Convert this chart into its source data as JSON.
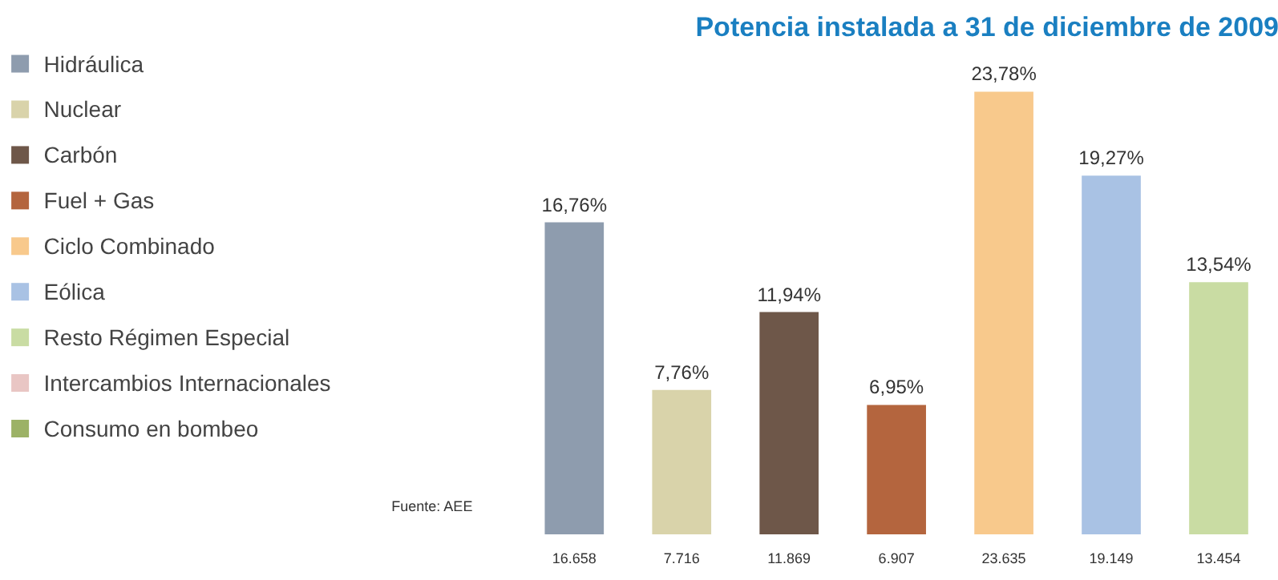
{
  "chart_data": {
    "type": "bar",
    "title": "Potencia instalada a 31 de diciembre de 2009",
    "stacked": true,
    "categories": [
      null,
      null,
      null,
      null,
      null,
      null,
      null
    ],
    "series": [
      {
        "name": "Hidráulica",
        "color": "#8e9cae",
        "values": [
          16.76,
          null,
          null,
          null,
          null,
          null,
          null
        ],
        "value_labels": [
          "16,76%",
          null,
          null,
          null,
          null,
          null,
          null
        ]
      },
      {
        "name": "Nuclear",
        "color": "#d9d3aa",
        "values": [
          null,
          7.76,
          null,
          null,
          null,
          null,
          null
        ],
        "value_labels": [
          null,
          "7,76%",
          null,
          null,
          null,
          null,
          null
        ]
      },
      {
        "name": "Carbón",
        "color": "#6e5749",
        "values": [
          null,
          null,
          11.94,
          null,
          null,
          null,
          null
        ],
        "value_labels": [
          null,
          null,
          "11,94%",
          null,
          null,
          null,
          null
        ]
      },
      {
        "name": "Fuel + Gas",
        "color": "#b4653e",
        "values": [
          null,
          null,
          null,
          6.95,
          null,
          null,
          null
        ],
        "value_labels": [
          null,
          null,
          null,
          "6,95%",
          null,
          null,
          null
        ]
      },
      {
        "name": "Ciclo Combinado",
        "color": "#f8c98c",
        "values": [
          null,
          null,
          null,
          null,
          23.78,
          null,
          null
        ],
        "value_labels": [
          null,
          null,
          null,
          null,
          "23,78%",
          null,
          null
        ]
      },
      {
        "name": "Eólica",
        "color": "#a9c2e4",
        "values": [
          null,
          null,
          null,
          null,
          null,
          19.27,
          null
        ],
        "value_labels": [
          null,
          null,
          null,
          null,
          null,
          "19,27%",
          null
        ]
      },
      {
        "name": "Resto Régimen Especial",
        "color": "#c9dca3",
        "values": [
          null,
          null,
          null,
          null,
          null,
          null,
          13.54
        ],
        "value_labels": [
          null,
          null,
          null,
          null,
          null,
          null,
          "13,54%"
        ]
      },
      {
        "name": "Intercambios Internacionales",
        "color": "#e9c6c4",
        "values": [
          null,
          null,
          null,
          null,
          null,
          null,
          null
        ]
      },
      {
        "name": "Consumo en bombeo",
        "color": "#9cb266",
        "values": [
          null,
          null,
          null,
          null,
          null,
          null,
          null
        ]
      }
    ],
    "annotations": [
      "16.658",
      "7.716",
      "11.869",
      "6.907",
      "23.635",
      "19.149",
      "13.454",
      "Fuente: AEE"
    ],
    "tick_labels": false,
    "grid": false,
    "legend": "left"
  }
}
